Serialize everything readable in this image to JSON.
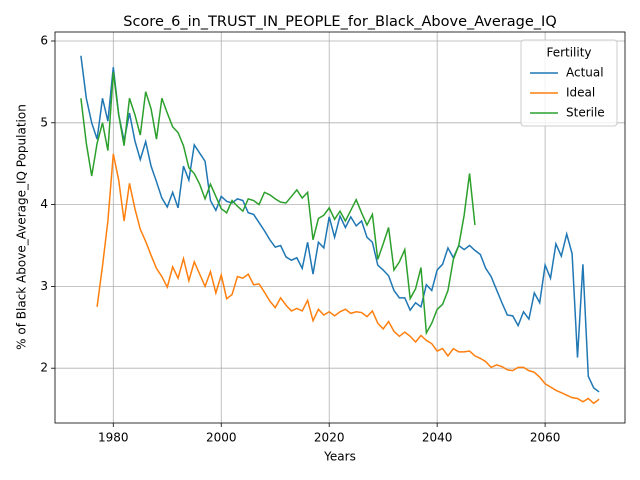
{
  "chart_data": {
    "type": "line",
    "title": "Score_6_in_TRUST_IN_PEOPLE_for_Black_Above_Average_IQ",
    "x_label": "Years",
    "y_label": "% of Black Above_Average_IQ Population",
    "legend_title": "Fertility",
    "legend_position": "upper right",
    "grid": true,
    "xlim": [
      1969.2,
      2074.8
    ],
    "ylim": [
      1.33,
      6.11
    ],
    "xticks": [
      1980,
      2000,
      2020,
      2040,
      2060
    ],
    "yticks": [
      2,
      3,
      4,
      5,
      6
    ],
    "x": [
      1974,
      1975,
      1976,
      1977,
      1978,
      1979,
      1980,
      1981,
      1982,
      1983,
      1984,
      1985,
      1986,
      1987,
      1988,
      1989,
      1990,
      1991,
      1992,
      1993,
      1994,
      1995,
      1996,
      1997,
      1998,
      1999,
      2000,
      2001,
      2002,
      2003,
      2004,
      2005,
      2006,
      2007,
      2008,
      2009,
      2010,
      2011,
      2012,
      2013,
      2014,
      2015,
      2016,
      2017,
      2018,
      2019,
      2020,
      2021,
      2022,
      2023,
      2024,
      2025,
      2026,
      2027,
      2028,
      2029,
      2030,
      2031,
      2032,
      2033,
      2034,
      2035,
      2036,
      2037,
      2038,
      2039,
      2040,
      2041,
      2042,
      2043,
      2044,
      2045,
      2046,
      2047,
      2048,
      2049,
      2050,
      2051,
      2052,
      2053,
      2054,
      2055,
      2056,
      2057,
      2058,
      2059,
      2060,
      2061,
      2062,
      2063,
      2064,
      2065,
      2066,
      2067,
      2068,
      2069,
      2070
    ],
    "series": [
      {
        "name": "Actual",
        "color": "#1f77b4",
        "values": [
          5.82,
          5.3,
          5.0,
          4.8,
          5.3,
          5.02,
          5.68,
          5.1,
          4.78,
          5.12,
          4.78,
          4.55,
          4.77,
          4.47,
          4.28,
          4.08,
          3.97,
          4.15,
          3.96,
          4.47,
          4.3,
          4.73,
          4.63,
          4.53,
          4.05,
          3.93,
          4.1,
          4.04,
          4.02,
          4.07,
          4.05,
          3.9,
          3.88,
          3.78,
          3.68,
          3.57,
          3.48,
          3.5,
          3.36,
          3.32,
          3.35,
          3.22,
          3.54,
          3.15,
          3.54,
          3.47,
          3.85,
          3.6,
          3.86,
          3.72,
          3.85,
          3.74,
          3.8,
          3.6,
          3.54,
          3.26,
          3.2,
          3.13,
          2.95,
          2.86,
          2.86,
          2.71,
          2.8,
          2.75,
          3.02,
          2.95,
          3.2,
          3.27,
          3.47,
          3.35,
          3.5,
          3.45,
          3.5,
          3.44,
          3.39,
          3.22,
          3.12,
          2.96,
          2.8,
          2.65,
          2.64,
          2.52,
          2.69,
          2.6,
          2.92,
          2.8,
          3.26,
          3.1,
          3.52,
          3.37,
          3.64,
          3.4,
          2.13,
          3.27,
          1.9,
          1.76,
          1.71
        ]
      },
      {
        "name": "Ideal",
        "color": "#ff7f0e",
        "values": [
          null,
          null,
          null,
          2.75,
          3.25,
          3.8,
          4.62,
          4.3,
          3.8,
          4.26,
          3.95,
          3.7,
          3.55,
          3.38,
          3.22,
          3.12,
          2.99,
          3.24,
          3.1,
          3.34,
          3.07,
          3.3,
          3.15,
          3.0,
          3.18,
          2.92,
          3.14,
          2.85,
          2.9,
          3.12,
          3.1,
          3.15,
          3.02,
          3.03,
          2.93,
          2.82,
          2.74,
          2.86,
          2.77,
          2.7,
          2.73,
          2.7,
          2.83,
          2.58,
          2.72,
          2.65,
          2.69,
          2.64,
          2.69,
          2.72,
          2.67,
          2.69,
          2.68,
          2.63,
          2.7,
          2.55,
          2.48,
          2.57,
          2.45,
          2.39,
          2.44,
          2.39,
          2.32,
          2.4,
          2.34,
          2.3,
          2.21,
          2.24,
          2.15,
          2.24,
          2.2,
          2.2,
          2.21,
          2.15,
          2.12,
          2.08,
          2.01,
          2.04,
          2.02,
          1.98,
          1.97,
          2.01,
          2.01,
          1.97,
          1.95,
          1.89,
          1.81,
          1.77,
          1.73,
          1.7,
          1.67,
          1.64,
          1.63,
          1.59,
          1.63,
          1.57,
          1.62
        ]
      },
      {
        "name": "Sterile",
        "color": "#2ca02c",
        "values": [
          5.3,
          4.75,
          4.35,
          4.75,
          5.0,
          4.66,
          5.62,
          5.1,
          4.72,
          5.3,
          5.1,
          4.85,
          5.38,
          5.17,
          4.8,
          5.3,
          5.12,
          4.95,
          4.88,
          4.72,
          4.45,
          4.38,
          4.25,
          4.07,
          4.25,
          4.1,
          3.95,
          3.9,
          4.05,
          3.98,
          3.92,
          4.07,
          4.05,
          4.0,
          4.15,
          4.12,
          4.07,
          4.03,
          4.02,
          4.1,
          4.18,
          4.08,
          4.15,
          3.57,
          3.83,
          3.87,
          3.96,
          3.82,
          3.92,
          3.8,
          3.93,
          4.06,
          3.9,
          3.75,
          3.88,
          3.33,
          3.52,
          3.72,
          3.2,
          3.3,
          3.45,
          2.85,
          2.97,
          3.23,
          2.43,
          2.55,
          2.72,
          2.78,
          2.95,
          3.33,
          3.5,
          3.87,
          4.38,
          3.75,
          null,
          null,
          null,
          null,
          null,
          null,
          null,
          null,
          null,
          null,
          null,
          null,
          null,
          null,
          null,
          null,
          null,
          null,
          null,
          null,
          null,
          null,
          null
        ]
      }
    ]
  }
}
